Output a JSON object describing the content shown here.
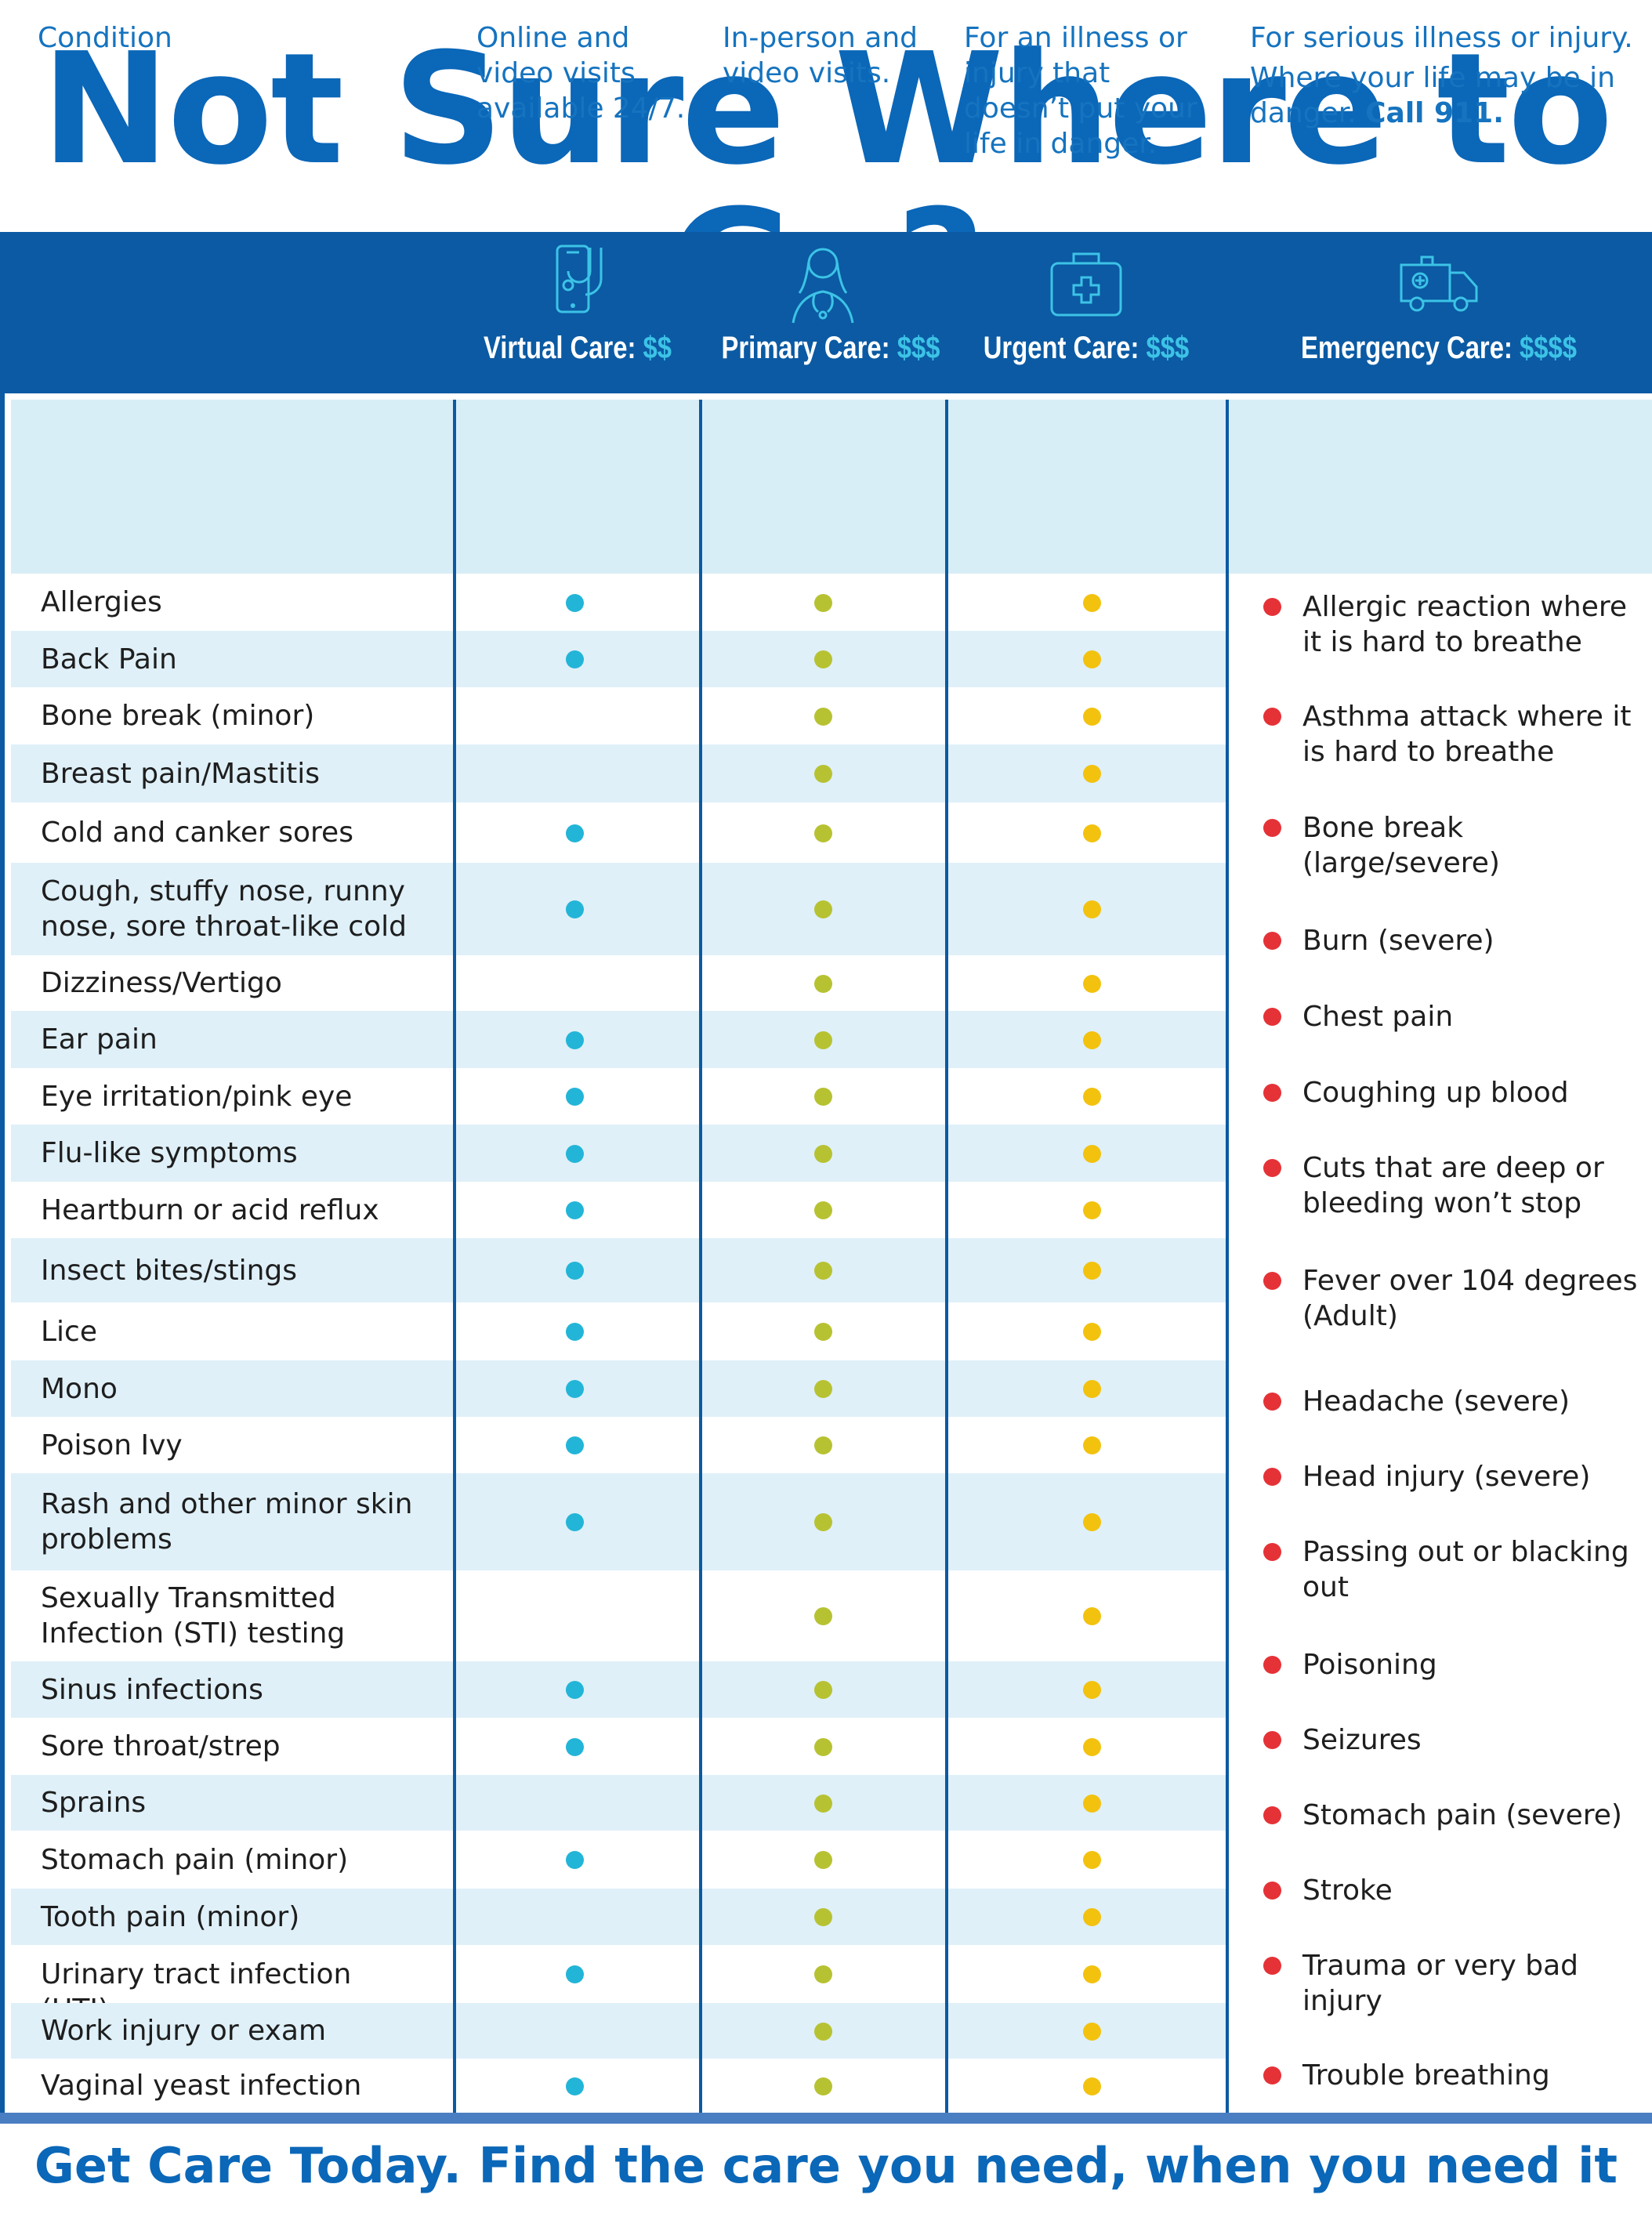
{
  "title": "Not Sure Where to Go?",
  "care_types": [
    {
      "name": "Virtual Care:",
      "cost": "$$",
      "icon": "phone-stethoscope-icon"
    },
    {
      "name": "Primary Care:",
      "cost": "$$$",
      "icon": "doctor-icon"
    },
    {
      "name": "Urgent Care:",
      "cost": "$$$",
      "icon": "first-aid-kit-icon"
    },
    {
      "name": "Emergency Care:",
      "cost": "$$$$",
      "icon": "ambulance-icon"
    }
  ],
  "descriptions": {
    "condition_header": "Condition",
    "virtual": "Online and video visits available 24/7.",
    "primary": "In-person and video visits.",
    "urgent": "For an illness or injury that doesn’t put your life in danger.",
    "emergency_1": "For serious illness or injury.",
    "emergency_2": "Where your life may be in danger.",
    "emergency_call": "Call 911."
  },
  "conditions": [
    {
      "name": "Allergies",
      "virtual": true,
      "primary": true,
      "urgent": true
    },
    {
      "name": "Back Pain",
      "virtual": true,
      "primary": true,
      "urgent": true
    },
    {
      "name": "Bone break (minor)",
      "virtual": false,
      "primary": true,
      "urgent": true
    },
    {
      "name": "Breast pain/Mastitis",
      "virtual": false,
      "primary": true,
      "urgent": true
    },
    {
      "name": "Cold and canker sores",
      "virtual": true,
      "primary": true,
      "urgent": true
    },
    {
      "name": "Cough, stuffy nose, runny nose, sore throat-like cold",
      "virtual": true,
      "primary": true,
      "urgent": true
    },
    {
      "name": "Dizziness/Vertigo",
      "virtual": false,
      "primary": true,
      "urgent": true
    },
    {
      "name": "Ear pain",
      "virtual": true,
      "primary": true,
      "urgent": true
    },
    {
      "name": "Eye irritation/pink eye",
      "virtual": true,
      "primary": true,
      "urgent": true
    },
    {
      "name": "Flu-like symptoms",
      "virtual": true,
      "primary": true,
      "urgent": true
    },
    {
      "name": "Heartburn or acid reflux",
      "virtual": true,
      "primary": true,
      "urgent": true
    },
    {
      "name": "Insect bites/stings",
      "virtual": true,
      "primary": true,
      "urgent": true
    },
    {
      "name": "Lice",
      "virtual": true,
      "primary": true,
      "urgent": true
    },
    {
      "name": "Mono",
      "virtual": true,
      "primary": true,
      "urgent": true
    },
    {
      "name": "Poison Ivy",
      "virtual": true,
      "primary": true,
      "urgent": true
    },
    {
      "name": "Rash and other minor skin problems",
      "virtual": true,
      "primary": true,
      "urgent": true
    },
    {
      "name": "Sexually Transmitted Infection (STI) testing",
      "virtual": false,
      "primary": true,
      "urgent": true
    },
    {
      "name": "Sinus infections",
      "virtual": true,
      "primary": true,
      "urgent": true
    },
    {
      "name": "Sore throat/strep",
      "virtual": true,
      "primary": true,
      "urgent": true
    },
    {
      "name": "Sprains",
      "virtual": false,
      "primary": true,
      "urgent": true
    },
    {
      "name": "Stomach pain (minor)",
      "virtual": true,
      "primary": true,
      "urgent": true
    },
    {
      "name": "Tooth pain (minor)",
      "virtual": false,
      "primary": true,
      "urgent": true
    },
    {
      "name": "Urinary tract infection (UTI)",
      "virtual": true,
      "primary": true,
      "urgent": true
    },
    {
      "name": "Work injury or exam",
      "virtual": false,
      "primary": true,
      "urgent": true
    },
    {
      "name": "Vaginal yeast infection",
      "virtual": true,
      "primary": true,
      "urgent": true
    }
  ],
  "emergency_conditions": [
    "Allergic reaction where it is hard to breathe",
    "Asthma attack where it is hard to breathe",
    "Bone break (large/severe)",
    "Burn (severe)",
    "Chest pain",
    "Coughing up blood",
    "Cuts that are deep or bleeding won’t stop",
    "Fever over 104 degrees (Adult)",
    "Headache (severe)",
    "Head injury (severe)",
    "Passing out or blacking out",
    "Poisoning",
    "Seizures",
    "Stomach pain (severe)",
    "Stroke",
    "Trauma or very bad injury",
    "Trouble breathing"
  ],
  "footer": "Get Care Today. Find the care you need, when you need it",
  "colors": {
    "brand_blue": "#0b5aa3",
    "title_blue": "#0b67b8",
    "virtual_dot": "#22b5d8",
    "primary_dot": "#b7c232",
    "urgent_dot": "#f2c20f",
    "emergency_dot": "#e53237"
  }
}
